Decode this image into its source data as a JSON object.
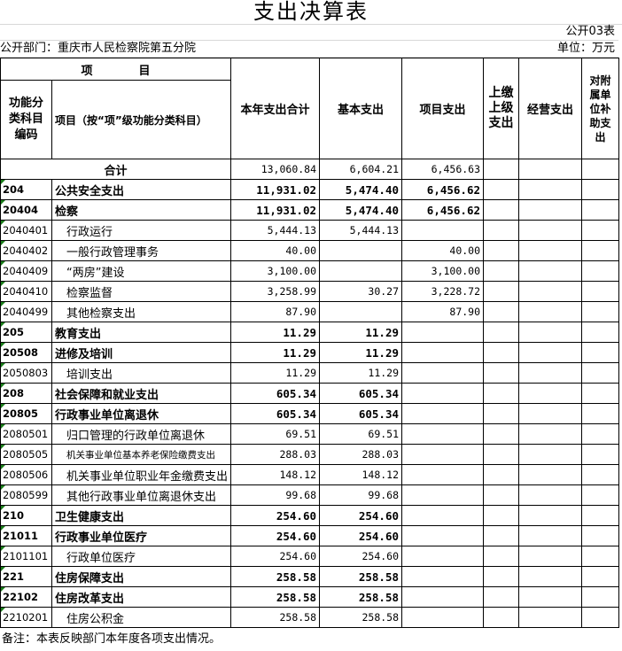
{
  "title": "支出决算表",
  "form_no": "公开03表",
  "department": "公开部门：重庆市人民检察院第五分院",
  "unit": "单位：万元",
  "headers": {
    "item": "项　　　　目",
    "code": "功能分类科目编码",
    "name": "项目（按“项”级功能分类科目）",
    "total": "本年支出合计",
    "basic": "基本支出",
    "project": "项目支出",
    "upper": "上缴上级支出",
    "business": "经营支出",
    "subsidy": "对附属单位补助支出"
  },
  "total_row": {
    "label": "合计",
    "total": "13,060.84",
    "basic": "6,604.21",
    "project": "6,456.63"
  },
  "rows": [
    {
      "code": "204",
      "name": "公共安全支出",
      "total": "11,931.02",
      "basic": "5,474.40",
      "project": "6,456.62",
      "bold": true
    },
    {
      "code": "20404",
      "name": "检察",
      "total": "11,931.02",
      "basic": "5,474.40",
      "project": "6,456.62",
      "bold": true
    },
    {
      "code": "2040401",
      "name": "行政运行",
      "total": "5,444.13",
      "basic": "5,444.13",
      "project": ""
    },
    {
      "code": "2040402",
      "name": "一般行政管理事务",
      "total": "40.00",
      "basic": "",
      "project": "40.00"
    },
    {
      "code": "2040409",
      "name": "“两房”建设",
      "total": "3,100.00",
      "basic": "",
      "project": "3,100.00"
    },
    {
      "code": "2040410",
      "name": "检察监督",
      "total": "3,258.99",
      "basic": "30.27",
      "project": "3,228.72"
    },
    {
      "code": "2040499",
      "name": "其他检察支出",
      "total": "87.90",
      "basic": "",
      "project": "87.90"
    },
    {
      "code": "205",
      "name": "教育支出",
      "total": "11.29",
      "basic": "11.29",
      "project": "",
      "bold": true
    },
    {
      "code": "20508",
      "name": "进修及培训",
      "total": "11.29",
      "basic": "11.29",
      "project": "",
      "bold": true
    },
    {
      "code": "2050803",
      "name": "培训支出",
      "total": "11.29",
      "basic": "11.29",
      "project": ""
    },
    {
      "code": "208",
      "name": "社会保障和就业支出",
      "total": "605.34",
      "basic": "605.34",
      "project": "",
      "bold": true
    },
    {
      "code": "20805",
      "name": "行政事业单位离退休",
      "total": "605.34",
      "basic": "605.34",
      "project": "",
      "bold": true
    },
    {
      "code": "2080501",
      "name": "归口管理的行政单位离退休",
      "total": "69.51",
      "basic": "69.51",
      "project": ""
    },
    {
      "code": "2080505",
      "name": "机关事业单位基本养老保险缴费支出",
      "total": "288.03",
      "basic": "288.03",
      "project": "",
      "small": true
    },
    {
      "code": "2080506",
      "name": "机关事业单位职业年金缴费支出",
      "total": "148.12",
      "basic": "148.12",
      "project": ""
    },
    {
      "code": "2080599",
      "name": "其他行政事业单位离退休支出",
      "total": "99.68",
      "basic": "99.68",
      "project": ""
    },
    {
      "code": "210",
      "name": "卫生健康支出",
      "total": "254.60",
      "basic": "254.60",
      "project": "",
      "bold": true
    },
    {
      "code": "21011",
      "name": "行政事业单位医疗",
      "total": "254.60",
      "basic": "254.60",
      "project": "",
      "bold": true
    },
    {
      "code": "2101101",
      "name": "行政单位医疗",
      "total": "254.60",
      "basic": "254.60",
      "project": ""
    },
    {
      "code": "221",
      "name": "住房保障支出",
      "total": "258.58",
      "basic": "258.58",
      "project": "",
      "bold": true
    },
    {
      "code": "22102",
      "name": "住房改革支出",
      "total": "258.58",
      "basic": "258.58",
      "project": "",
      "bold": true
    },
    {
      "code": "2210201",
      "name": "住房公积金",
      "total": "258.58",
      "basic": "258.58",
      "project": ""
    }
  ],
  "note": "备注：本表反映部门本年度各项支出情况。"
}
